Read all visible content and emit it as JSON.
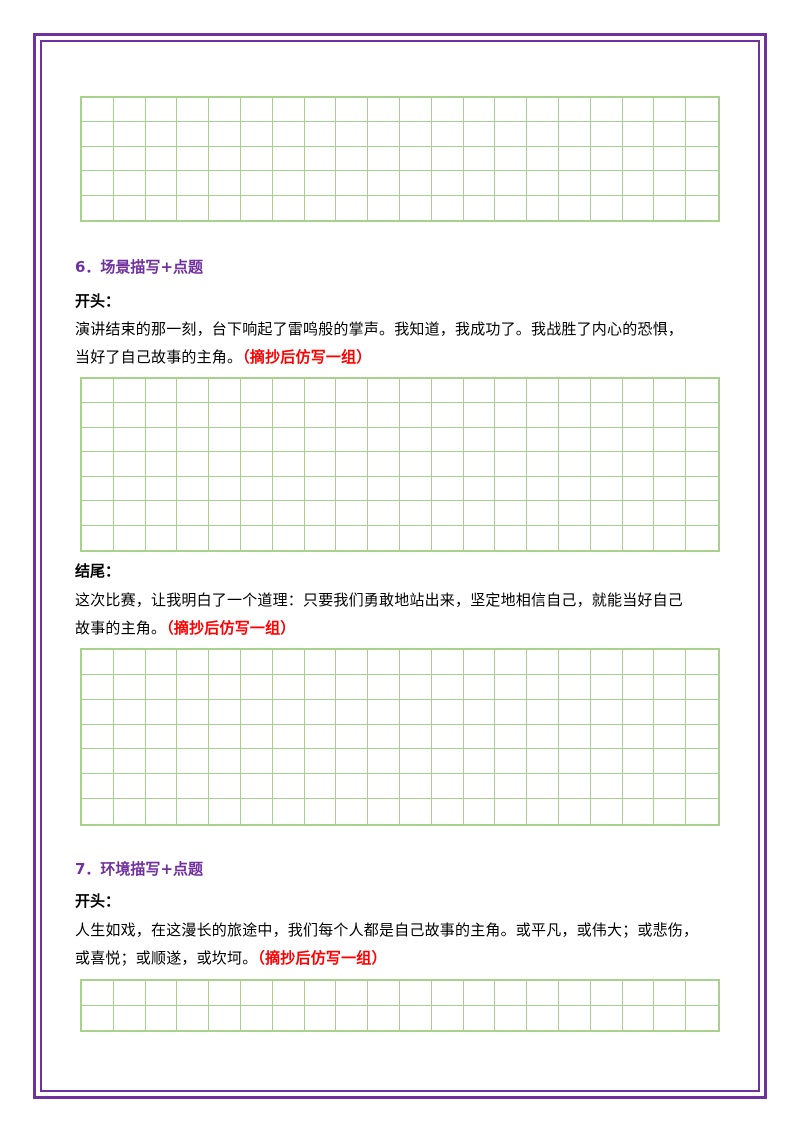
{
  "frame": {
    "color": "#7030a0"
  },
  "grid": {
    "columns": 20,
    "line_color": "#a9d18e"
  },
  "sections": {
    "s6": {
      "heading": "6．场景描写+点题",
      "opening_label": "开头：",
      "opening_line1": "演讲结束的那一刻，台下响起了雷鸣般的掌声。我知道，我成功了。我战胜了内心的恐惧，",
      "opening_line2": "当好了自己故事的主角。",
      "opening_note": "（摘抄后仿写一组）",
      "ending_label": "结尾：",
      "ending_line1": "这次比赛，让我明白了一个道理：只要我们勇敢地站出来，坚定地相信自己，就能当好自己",
      "ending_line2": "故事的主角。",
      "ending_note": "（摘抄后仿写一组）"
    },
    "s7": {
      "heading": "7．环境描写+点题",
      "opening_label": "开头：",
      "opening_line1": "人生如戏，在这漫长的旅途中，我们每个人都是自己故事的主角。或平凡，或伟大；或悲伤，",
      "opening_line2": "或喜悦；或顺遂，或坎坷。",
      "opening_note": "（摘抄后仿写一组）"
    }
  },
  "colors": {
    "heading": "#7030a0",
    "note": "#ff0000",
    "grid": "#a9d18e"
  }
}
